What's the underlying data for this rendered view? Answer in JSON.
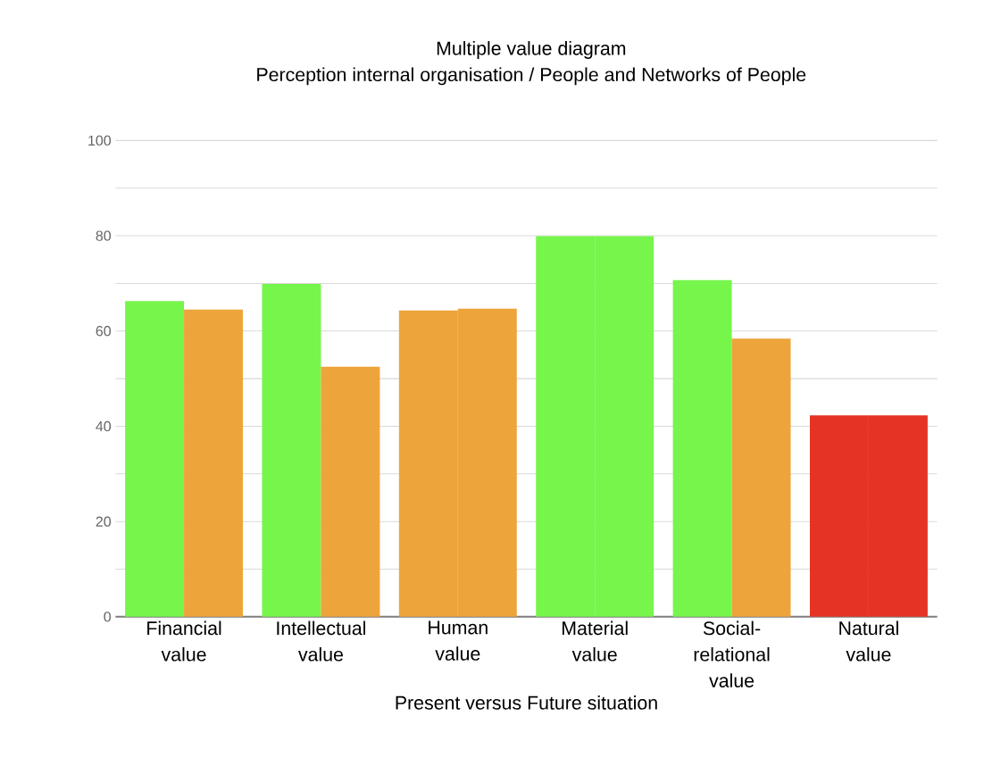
{
  "chart_data": {
    "type": "bar",
    "title": "Multiple value diagram",
    "subtitle": "Perception internal organisation / People and Networks of People",
    "xlabel": "Present versus Future situation",
    "categories": [
      "Financial value",
      "Intellectual value",
      "Human value",
      "Material value",
      "Social-relational value",
      "Natural value"
    ],
    "series": [
      {
        "colors": [
          "#76f54b",
          "#76f54b",
          "#eda43a",
          "#76f54b",
          "#76f54b",
          "#e53425"
        ],
        "values": [
          66.3,
          69.9,
          64.3,
          79.9,
          70.7,
          42.3
        ]
      },
      {
        "colors": [
          "#eda43a",
          "#eda43a",
          "#eda43a",
          "#76f54b",
          "#eda43a",
          "#e53425"
        ],
        "values": [
          64.5,
          52.5,
          64.7,
          79.9,
          58.4,
          42.3
        ]
      }
    ],
    "ylim": [
      0,
      100
    ],
    "yticks": [
      0,
      {
        "value": 10,
        "label": null
      },
      20,
      {
        "value": 30,
        "label": null
      },
      40,
      {
        "value": 50,
        "label": null
      },
      60,
      {
        "value": 70,
        "label": null
      },
      80,
      {
        "value": 90,
        "label": null
      },
      100
    ],
    "grid": "y"
  }
}
